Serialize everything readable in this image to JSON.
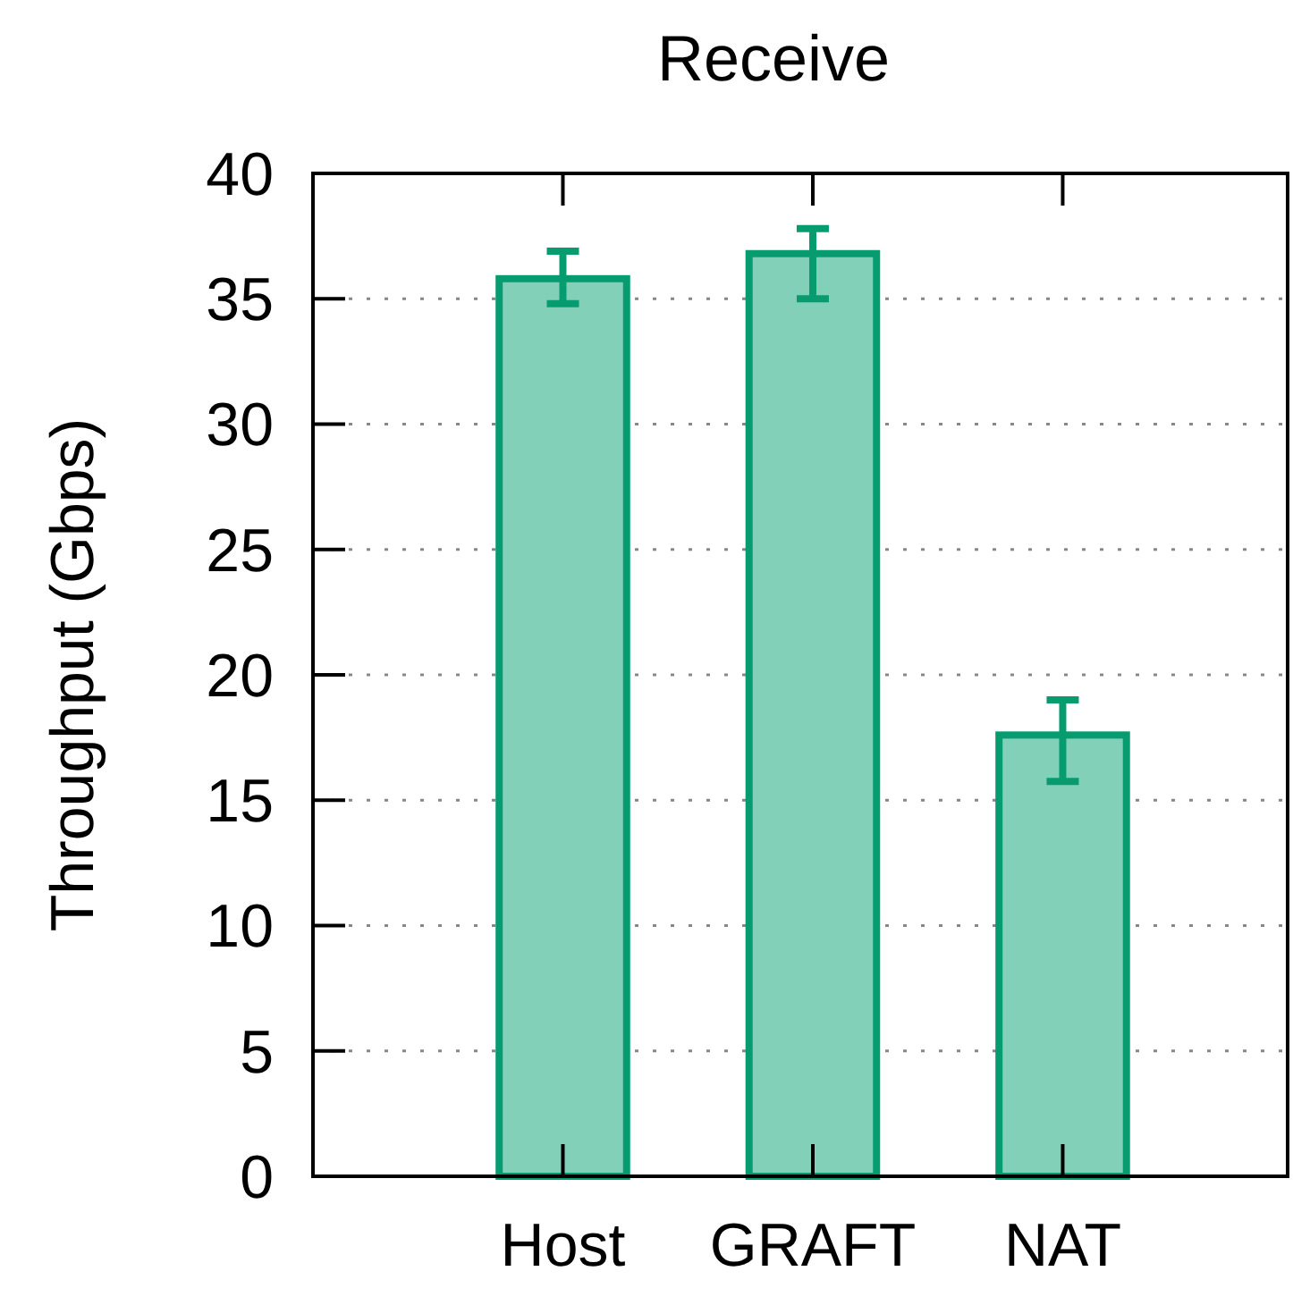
{
  "chart_data": {
    "type": "bar",
    "title": "Receive",
    "ylabel": "Throughput (Gbps)",
    "categories": [
      "Host",
      "GRAFT",
      "NAT"
    ],
    "values": [
      35.8,
      36.8,
      17.6
    ],
    "errors": [
      [
        34.8,
        36.9
      ],
      [
        35.0,
        37.8
      ],
      [
        15.75,
        19.0
      ]
    ],
    "color": "#82d0b8",
    "ylim": [
      0,
      40
    ],
    "yticks": [
      0,
      5,
      10,
      15,
      20,
      25,
      30,
      35,
      40
    ],
    "grid": "y"
  }
}
